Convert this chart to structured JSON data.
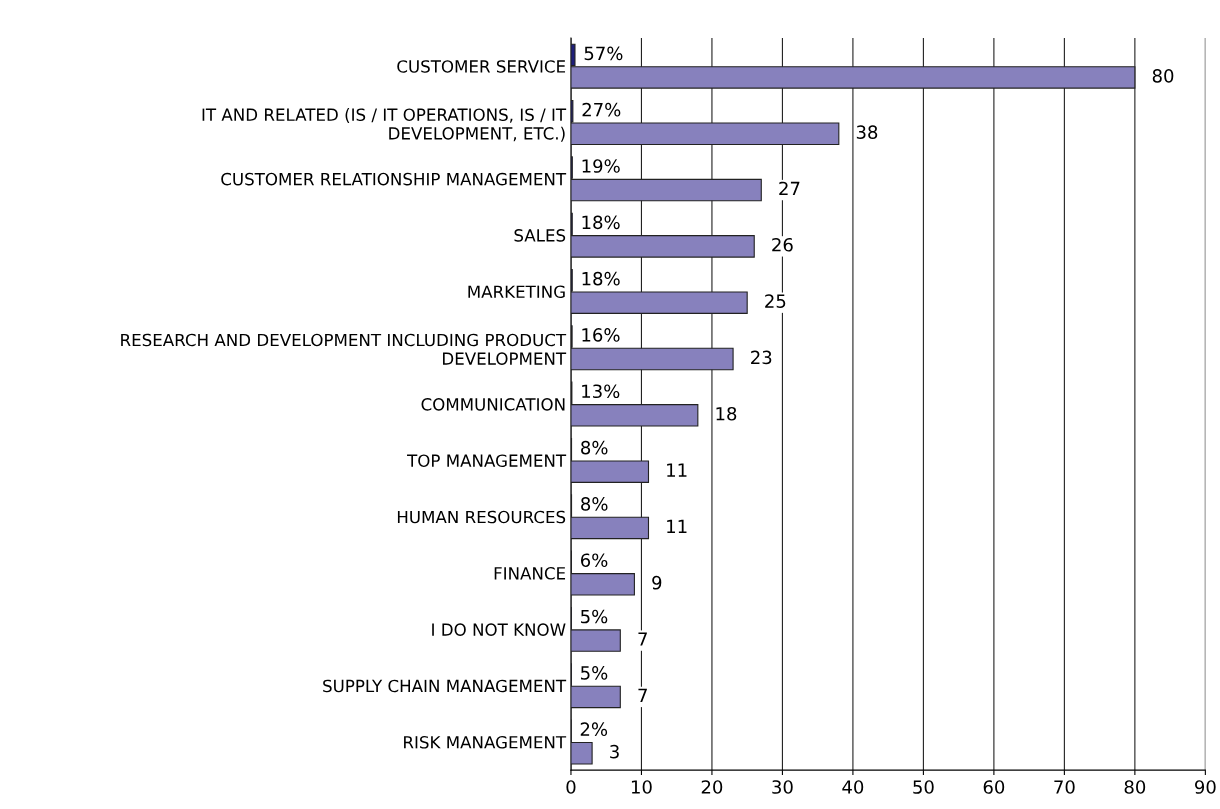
{
  "chart_data": {
    "type": "bar",
    "orientation": "horizontal",
    "categories": [
      "CUSTOMER SERVICE",
      "IT AND RELATED (IS / IT OPERATIONS, IS / IT DEVELOPMENT, ETC.)",
      "CUSTOMER RELATIONSHIP MANAGEMENT",
      "SALES",
      "MARKETING",
      "RESEARCH AND DEVELOPMENT INCLUDING PRODUCT DEVELOPMENT",
      "COMMUNICATION",
      "TOP MANAGEMENT",
      "HUMAN RESOURCES",
      "FINANCE",
      "I DO NOT KNOW",
      "SUPPLY CHAIN MANAGEMENT",
      "RISK MANAGEMENT"
    ],
    "series": [
      {
        "color": "#1f1f7a",
        "values": [
          0.57,
          0.27,
          0.19,
          0.18,
          0.18,
          0.16,
          0.13,
          0.08,
          0.08,
          0.06,
          0.05,
          0.05,
          0.02
        ],
        "value_labels": [
          "57%",
          "27%",
          "19%",
          "18%",
          "18%",
          "16%",
          "13%",
          "8%",
          "8%",
          "6%",
          "5%",
          "5%",
          "2%"
        ]
      },
      {
        "color": "#8781bd",
        "values": [
          80,
          38,
          27,
          26,
          25,
          23,
          18,
          11,
          11,
          9,
          7,
          7,
          3
        ],
        "data_labels": true
      }
    ],
    "xlim": [
      0,
      90
    ],
    "xticks": [
      0,
      10,
      20,
      30,
      40,
      50,
      60,
      70,
      80,
      90
    ],
    "grid": "x",
    "legend": false
  }
}
